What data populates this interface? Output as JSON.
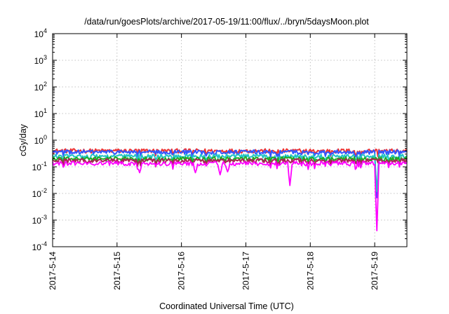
{
  "chart_data": {
    "type": "line",
    "title": "/data/run/goesPlots/archive/2017-05-19/11:00/flux/../bryn/5daysMoon.plot",
    "xlabel": "Coordinated Universal Time (UTC)",
    "ylabel": "cGy/day",
    "yscale": "log",
    "ylim": [
      0.0001,
      10000
    ],
    "xlim": [
      "2017-05-14",
      "2017-05-19 12:00"
    ],
    "grid": true,
    "x_ticks": [
      "2017-5-14",
      "2017-5-15",
      "2017-5-16",
      "2017-5-17",
      "2017-5-18",
      "2017-5-19"
    ],
    "y_ticks": [
      {
        "base": "10",
        "exp": "-4"
      },
      {
        "base": "10",
        "exp": "-3"
      },
      {
        "base": "10",
        "exp": "-2"
      },
      {
        "base": "10",
        "exp": "-1"
      },
      {
        "base": "10",
        "exp": "0"
      },
      {
        "base": "10",
        "exp": "1"
      },
      {
        "base": "10",
        "exp": "2"
      },
      {
        "base": "10",
        "exp": "3"
      },
      {
        "base": "10",
        "exp": "4"
      }
    ],
    "series": [
      {
        "color": "#ee3333",
        "base": 0.4,
        "dips": []
      },
      {
        "color": "#3355ff",
        "base": 0.36,
        "dips": [
          {
            "x": "2017-05-19 00:40",
            "y": 0.007
          }
        ]
      },
      {
        "color": "#22c4c4",
        "base": 0.25,
        "dips": [
          {
            "x": "2017-05-19 00:40",
            "y": 0.012
          }
        ]
      },
      {
        "color": "#22aa22",
        "base": 0.2,
        "dips": []
      },
      {
        "color": "#aa2255",
        "base": 0.17,
        "dips": []
      },
      {
        "color": "#ff00ff",
        "base": 0.135,
        "dips": [
          {
            "x": "2017-05-15 08:30",
            "y": 0.06
          },
          {
            "x": "2017-05-16 05:10",
            "y": 0.06
          },
          {
            "x": "2017-05-16 14:30",
            "y": 0.05
          },
          {
            "x": "2017-05-16 17:20",
            "y": 0.065
          },
          {
            "x": "2017-05-17 16:30",
            "y": 0.02
          },
          {
            "x": "2017-05-19 00:40",
            "y": 0.0004
          }
        ]
      }
    ]
  }
}
